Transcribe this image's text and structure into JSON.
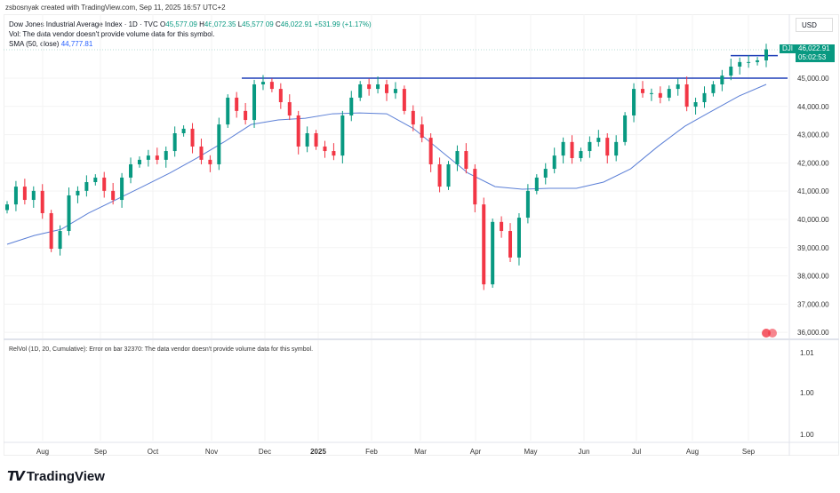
{
  "credit": "zsbosnyak created with TradingView.com, Sep 11, 2025 16:57 UTC+2",
  "legend": {
    "symbol": "Dow Jones Industrial Average Index · 1D · TVC",
    "o_label": "O",
    "o": "45,577.09",
    "h_label": "H",
    "h": "46,072.35",
    "l_label": "L",
    "l": "45,577.09",
    "c_label": "C",
    "c": "46,022.91",
    "change": "+531.99 (+1.17%)",
    "vol": "Vol: The data vendor doesn't provide volume data for this symbol.",
    "sma_label": "SMA (50, close)",
    "sma_value": "44,777.81"
  },
  "currency": "USD",
  "price_tag": {
    "symbol": "DJI",
    "price": "46,022.91",
    "countdown": "05:02:53"
  },
  "relvol": "RelVol (1D, 20, Cumulative): Error on bar 32370: The data vendor doesn't provide volume data for this symbol.",
  "relvol_axis": [
    "1.01",
    "1.00",
    "1.00"
  ],
  "logo": "TradingView",
  "colors": {
    "up": "#089981",
    "down": "#f23645",
    "sma": "#5b7fd6",
    "line": "#1f3fb8"
  },
  "chart_data": {
    "type": "candlestick",
    "price_axis": [
      "45,000.00",
      "44,000.00",
      "43,000.00",
      "42,000.00",
      "41,000.00",
      "40,000.00",
      "39,000.00",
      "38,000.00",
      "37,000.00",
      "36,000.00"
    ],
    "price_ticks": [
      45000,
      44000,
      43000,
      42000,
      41000,
      40000,
      39000,
      38000,
      37000,
      36000
    ],
    "months": [
      "Aug",
      "Sep",
      "Oct",
      "Nov",
      "Dec",
      "2025",
      "Feb",
      "Mar",
      "Apr",
      "May",
      "Jun",
      "Jul",
      "Aug",
      "Sep"
    ],
    "closes": [
      40530,
      41160,
      40690,
      41010,
      40220,
      38960,
      39590,
      40850,
      41010,
      41320,
      41480,
      41010,
      40690,
      41480,
      41950,
      42110,
      42260,
      42110,
      42420,
      43050,
      43210,
      42580,
      42110,
      41950,
      43360,
      44310,
      43840,
      43520,
      44780,
      44870,
      44620,
      44150,
      43680,
      42580,
      43050,
      42580,
      42420,
      42260,
      43680,
      44310,
      44780,
      44620,
      44780,
      44470,
      44620,
      43840,
      43360,
      42890,
      41950,
      41160,
      41950,
      42420,
      41790,
      40530,
      37700,
      39910,
      39590,
      38650,
      40060,
      41010,
      41480,
      41790,
      42260,
      42740,
      42170,
      42420,
      42740,
      42890,
      42260,
      42740,
      43680,
      44620,
      44470,
      44470,
      44310,
      44620,
      44780,
      43990,
      44150,
      44470,
      44780,
      45090,
      45410,
      45570,
      45570,
      45630,
      46020
    ],
    "sma": [
      39120,
      39430,
      39650,
      40220,
      40690,
      41160,
      41640,
      42170,
      42740,
      43360,
      43520,
      43580,
      43740,
      43770,
      43740,
      43210,
      42420,
      41640,
      41160,
      41070,
      41100,
      41100,
      41320,
      41790,
      42580,
      43300,
      43840,
      44370,
      44780
    ],
    "horizontal_lines": [
      45000,
      45800
    ]
  }
}
